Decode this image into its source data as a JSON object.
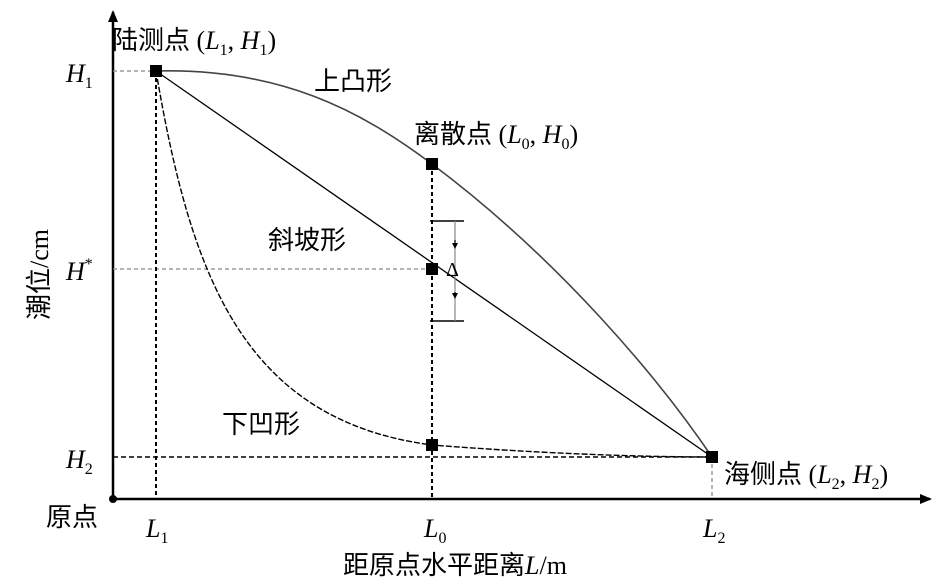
{
  "axes": {
    "y_label": "潮位/cm",
    "x_label_prefix": "距原点水平距离",
    "x_label_var": "L",
    "x_label_unit": "/m",
    "origin_label": "原点"
  },
  "ticks": {
    "y": [
      {
        "base": "H",
        "sub": "1",
        "sup": ""
      },
      {
        "base": "H",
        "sub": "",
        "sup": "*"
      },
      {
        "base": "H",
        "sub": "2",
        "sup": ""
      }
    ],
    "x": [
      {
        "base": "L",
        "sub": "1"
      },
      {
        "base": "L",
        "sub": "0"
      },
      {
        "base": "L",
        "sub": "2"
      }
    ]
  },
  "points": {
    "land": {
      "name": "陆测点",
      "p1": "L",
      "s1": "1",
      "p2": "H",
      "s2": "1"
    },
    "discrete": {
      "name": "离散点",
      "p1": "L",
      "s1": "0",
      "p2": "H",
      "s2": "0"
    },
    "sea": {
      "name": "海侧点",
      "p1": "L",
      "s1": "2",
      "p2": "H",
      "s2": "2"
    }
  },
  "curves": {
    "convex": "上凸形",
    "slope": "斜坡形",
    "concave": "下凹形"
  },
  "delta_symbol": "Δ",
  "colors": {
    "ink": "#000000",
    "curve": "#444444",
    "guide": "#888888"
  }
}
